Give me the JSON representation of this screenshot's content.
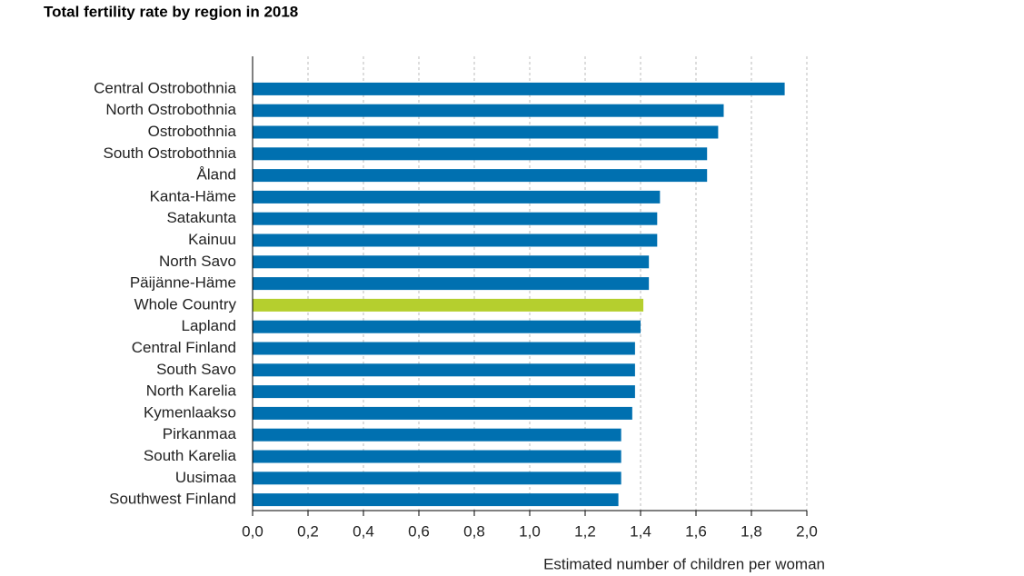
{
  "chart_data": {
    "type": "hbar",
    "title": "Total fertility rate by region in 2018",
    "x_label": "Estimated number of children per woman",
    "categories": [
      "Central Ostrobothnia",
      "North Ostrobothnia",
      "Ostrobothnia",
      "South Ostrobothnia",
      "Åland",
      "Kanta-Häme",
      "Satakunta",
      "Kainuu",
      "North Savo",
      "Päijänne-Häme",
      "Whole Country",
      "Lapland",
      "Central Finland",
      "South Savo",
      "North Karelia",
      "Kymenlaakso",
      "Pirkanmaa",
      "South Karelia",
      "Uusimaa",
      "Southwest Finland"
    ],
    "values": [
      1.92,
      1.7,
      1.68,
      1.64,
      1.64,
      1.47,
      1.46,
      1.46,
      1.43,
      1.43,
      1.41,
      1.4,
      1.38,
      1.38,
      1.38,
      1.37,
      1.33,
      1.33,
      1.33,
      1.32
    ],
    "colors": [
      "#0070b0",
      "#0070b0",
      "#0070b0",
      "#0070b0",
      "#0070b0",
      "#0070b0",
      "#0070b0",
      "#0070b0",
      "#0070b0",
      "#0070b0",
      "#b5cf2e",
      "#0070b0",
      "#0070b0",
      "#0070b0",
      "#0070b0",
      "#0070b0",
      "#0070b0",
      "#0070b0",
      "#0070b0",
      "#0070b0"
    ],
    "xlim": [
      0,
      2
    ],
    "xticks": [
      {
        "value": 0,
        "label": "0,0"
      },
      {
        "value": 0.2,
        "label": "0,2"
      },
      {
        "value": 0.4,
        "label": "0,4"
      },
      {
        "value": 0.6,
        "label": "0,6"
      },
      {
        "value": 0.8,
        "label": "0,8"
      },
      {
        "value": 1.0,
        "label": "1,0"
      },
      {
        "value": 1.2,
        "label": "1,2"
      },
      {
        "value": 1.4,
        "label": "1,4"
      },
      {
        "value": 1.6,
        "label": "1,6"
      },
      {
        "value": 1.8,
        "label": "1,8"
      },
      {
        "value": 2.0,
        "label": "2,0"
      }
    ],
    "grid": true
  }
}
